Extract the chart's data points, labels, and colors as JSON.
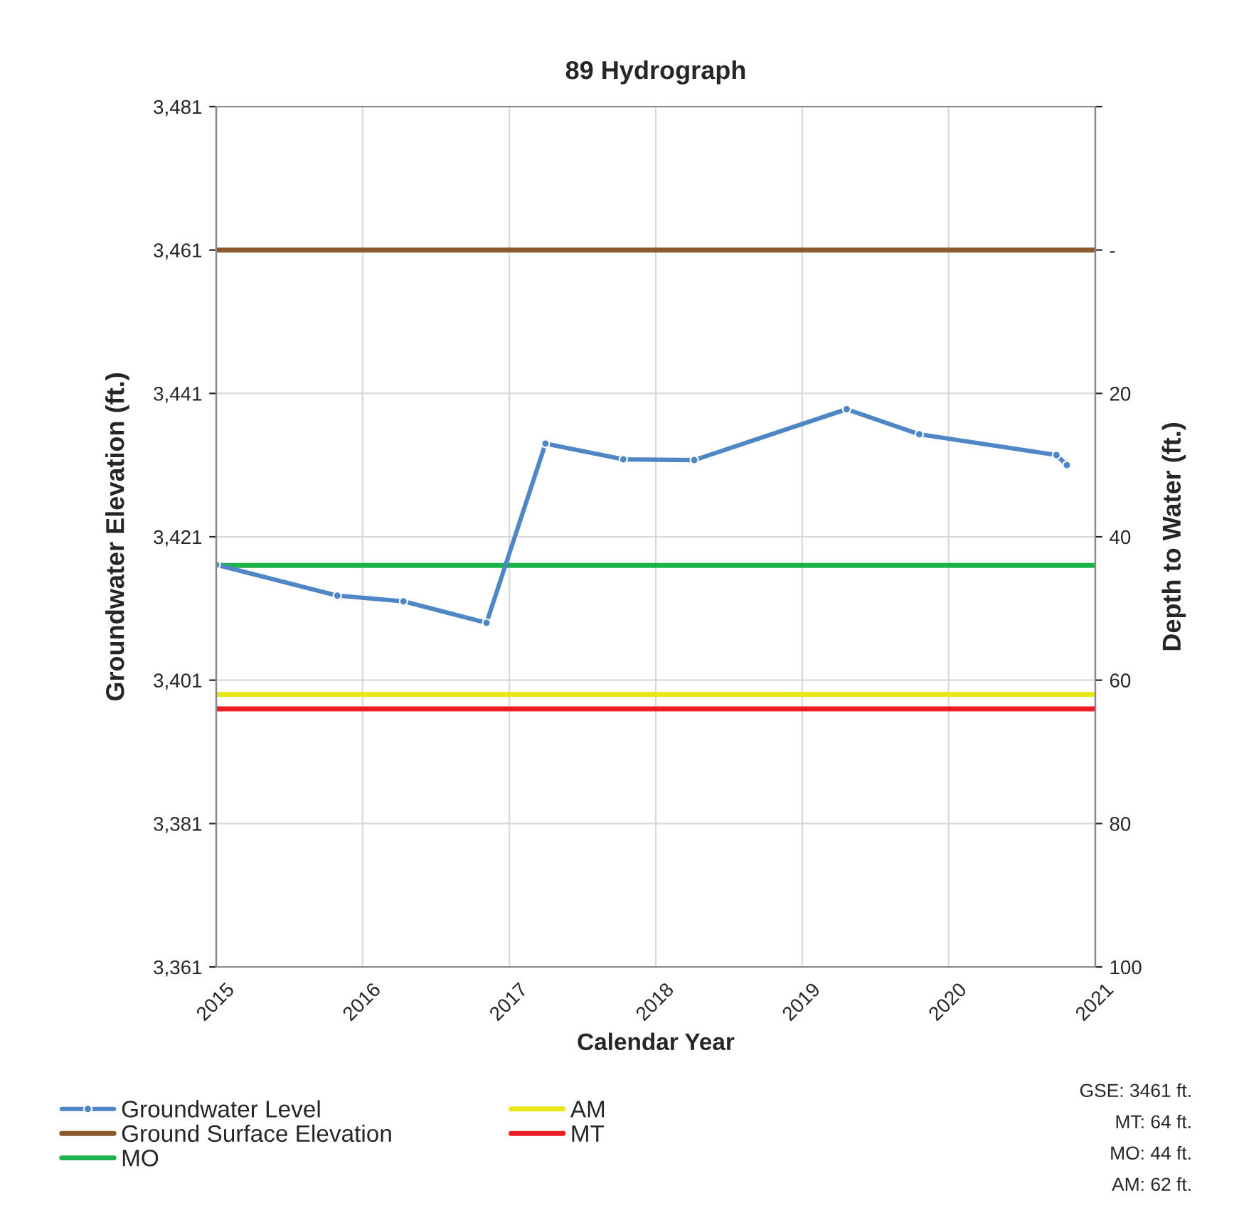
{
  "chart_data": {
    "type": "line",
    "title": "89 Hydrograph",
    "xlabel": "Calendar Year",
    "ylabel": "Groundwater Elevation (ft.)",
    "y2label": "Depth to Water (ft.)",
    "x": [
      "2015-01-01",
      "2015-10-30",
      "2016-04-12",
      "2016-11-05",
      "2017-04-01",
      "2017-10-12",
      "2018-04-07",
      "2019-04-22",
      "2019-10-20",
      "2020-09-26",
      "2020-10-22"
    ],
    "series": [
      {
        "name": "Groundwater Level",
        "color": "#4f86c6",
        "values": [
          3417.1,
          3412.8,
          3412.0,
          3409.0,
          3434.0,
          3431.8,
          3431.7,
          3438.8,
          3435.3,
          3432.4,
          3431.0
        ]
      }
    ],
    "ref_lines": [
      {
        "axis": "y",
        "value": 3461,
        "label": "Ground Surface Elevation",
        "color": "#8b5a2b"
      },
      {
        "axis": "y",
        "value": 3417,
        "label": "MO",
        "color": "#1db34a"
      },
      {
        "axis": "y",
        "value": 3399,
        "label": "AM",
        "color": "#e6e619"
      },
      {
        "axis": "y",
        "value": 3397,
        "label": "MT",
        "color": "#ee1c25"
      }
    ],
    "annotations": [
      "GSE: 3461 ft.",
      "MT: 64 ft.",
      "MO: 44 ft.",
      "AM: 62 ft."
    ],
    "xlim": [
      "2015",
      "2021"
    ],
    "xticks": [
      "2015",
      "2016",
      "2017",
      "2018",
      "2019",
      "2020",
      "2021"
    ],
    "ylim": [
      3361,
      3481
    ],
    "yticks": [
      {
        "value": 3361,
        "label": "3,361"
      },
      {
        "value": 3381,
        "label": "3,381"
      },
      {
        "value": 3401,
        "label": "3,401"
      },
      {
        "value": 3421,
        "label": "3,421"
      },
      {
        "value": 3441,
        "label": "3,441"
      },
      {
        "value": 3461,
        "label": "3,461"
      },
      {
        "value": 3481,
        "label": "3,481"
      }
    ],
    "y2lim": [
      100,
      -20
    ],
    "y2ticks": [
      100,
      80,
      60,
      40,
      20,
      {
        "value": 0,
        "label": "-"
      },
      {
        "value": -20,
        "label": null
      }
    ],
    "grid": true,
    "legend": "bottom",
    "marker": "circle",
    "line_style": "solid"
  }
}
